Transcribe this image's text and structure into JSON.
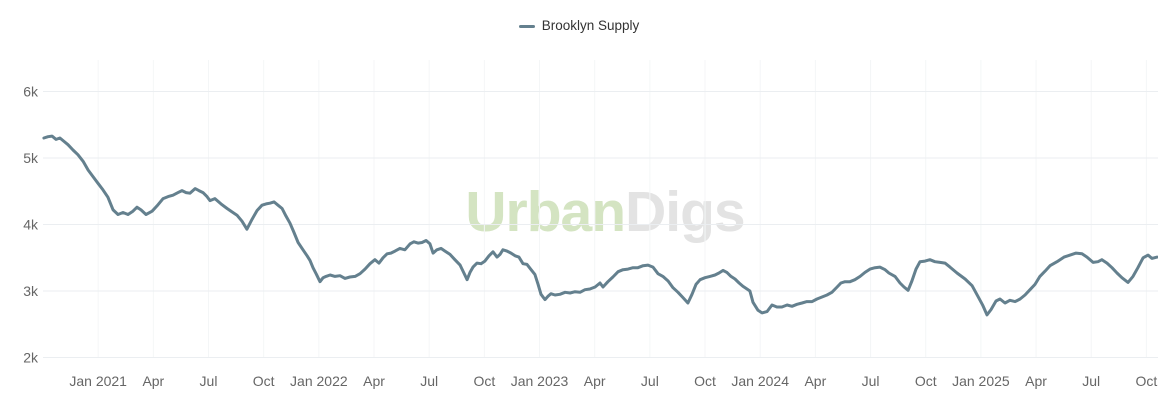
{
  "legend": {
    "series_label": "Brooklyn Supply"
  },
  "watermark": {
    "part1": "Urban",
    "part2": "Digs"
  },
  "colors": {
    "line": "#64808e",
    "watermark_green": "#d4e4c2",
    "watermark_gray": "#e3e3e3",
    "grid_horizontal": "#ebeef1",
    "grid_vertical": "#f4f6f7",
    "axis_label": "#666666",
    "legend_text": "#333333"
  },
  "chart_data": {
    "type": "line",
    "title": "",
    "legend_position": "top-center",
    "grid": true,
    "x_unit": "months since Oct 2020",
    "x_domain": [
      0,
      60.6
    ],
    "y_domain": [
      2000,
      6000
    ],
    "y_ticks": [
      {
        "v": 2000,
        "label": "2k"
      },
      {
        "v": 3000,
        "label": "3k"
      },
      {
        "v": 4000,
        "label": "4k"
      },
      {
        "v": 5000,
        "label": "5k"
      },
      {
        "v": 6000,
        "label": "6k"
      }
    ],
    "x_ticks": [
      {
        "t": 3,
        "label": "Jan 2021"
      },
      {
        "t": 6,
        "label": "Apr"
      },
      {
        "t": 9,
        "label": "Jul"
      },
      {
        "t": 12,
        "label": "Oct"
      },
      {
        "t": 15,
        "label": "Jan 2022"
      },
      {
        "t": 18,
        "label": "Apr"
      },
      {
        "t": 21,
        "label": "Jul"
      },
      {
        "t": 24,
        "label": "Oct"
      },
      {
        "t": 27,
        "label": "Jan 2023"
      },
      {
        "t": 30,
        "label": "Apr"
      },
      {
        "t": 33,
        "label": "Jul"
      },
      {
        "t": 36,
        "label": "Oct"
      },
      {
        "t": 39,
        "label": "Jan 2024"
      },
      {
        "t": 42,
        "label": "Apr"
      },
      {
        "t": 45,
        "label": "Jul"
      },
      {
        "t": 48,
        "label": "Oct"
      },
      {
        "t": 51,
        "label": "Jan 2025"
      },
      {
        "t": 54,
        "label": "Apr"
      },
      {
        "t": 57,
        "label": "Jul"
      },
      {
        "t": 60,
        "label": "Oct"
      }
    ],
    "series": [
      {
        "name": "Brooklyn Supply",
        "points": [
          [
            0.05,
            5300
          ],
          [
            0.27,
            5320
          ],
          [
            0.49,
            5330
          ],
          [
            0.71,
            5280
          ],
          [
            0.92,
            5300
          ],
          [
            1.14,
            5250
          ],
          [
            1.36,
            5200
          ],
          [
            1.63,
            5120
          ],
          [
            1.9,
            5050
          ],
          [
            2.18,
            4950
          ],
          [
            2.45,
            4820
          ],
          [
            2.72,
            4720
          ],
          [
            2.99,
            4620
          ],
          [
            3.26,
            4520
          ],
          [
            3.53,
            4410
          ],
          [
            3.81,
            4220
          ],
          [
            4.08,
            4150
          ],
          [
            4.35,
            4180
          ],
          [
            4.62,
            4150
          ],
          [
            4.89,
            4200
          ],
          [
            5.11,
            4260
          ],
          [
            5.33,
            4220
          ],
          [
            5.6,
            4150
          ],
          [
            5.93,
            4200
          ],
          [
            6.2,
            4280
          ],
          [
            6.53,
            4390
          ],
          [
            6.8,
            4420
          ],
          [
            7.07,
            4440
          ],
          [
            7.34,
            4480
          ],
          [
            7.56,
            4510
          ],
          [
            7.78,
            4480
          ],
          [
            7.99,
            4470
          ],
          [
            8.27,
            4540
          ],
          [
            8.48,
            4510
          ],
          [
            8.7,
            4480
          ],
          [
            8.92,
            4420
          ],
          [
            9.08,
            4360
          ],
          [
            9.35,
            4390
          ],
          [
            9.68,
            4310
          ],
          [
            10.01,
            4240
          ],
          [
            10.28,
            4190
          ],
          [
            10.55,
            4140
          ],
          [
            10.82,
            4050
          ],
          [
            11.09,
            3930
          ],
          [
            11.37,
            4080
          ],
          [
            11.64,
            4210
          ],
          [
            11.91,
            4290
          ],
          [
            12.13,
            4310
          ],
          [
            12.34,
            4320
          ],
          [
            12.56,
            4340
          ],
          [
            12.78,
            4290
          ],
          [
            13,
            4240
          ],
          [
            13.21,
            4130
          ],
          [
            13.43,
            4020
          ],
          [
            13.65,
            3880
          ],
          [
            13.87,
            3730
          ],
          [
            14.14,
            3620
          ],
          [
            14.36,
            3530
          ],
          [
            14.52,
            3460
          ],
          [
            14.68,
            3350
          ],
          [
            14.85,
            3260
          ],
          [
            15.06,
            3140
          ],
          [
            15.23,
            3200
          ],
          [
            15.39,
            3220
          ],
          [
            15.61,
            3240
          ],
          [
            15.88,
            3220
          ],
          [
            16.15,
            3230
          ],
          [
            16.42,
            3190
          ],
          [
            16.69,
            3210
          ],
          [
            16.97,
            3220
          ],
          [
            17.24,
            3260
          ],
          [
            17.51,
            3330
          ],
          [
            17.78,
            3410
          ],
          [
            18.05,
            3470
          ],
          [
            18.27,
            3420
          ],
          [
            18.49,
            3500
          ],
          [
            18.71,
            3560
          ],
          [
            18.92,
            3570
          ],
          [
            19.14,
            3600
          ],
          [
            19.41,
            3640
          ],
          [
            19.68,
            3620
          ],
          [
            19.96,
            3710
          ],
          [
            20.17,
            3740
          ],
          [
            20.39,
            3720
          ],
          [
            20.61,
            3730
          ],
          [
            20.83,
            3760
          ],
          [
            21.04,
            3710
          ],
          [
            21.21,
            3570
          ],
          [
            21.42,
            3620
          ],
          [
            21.64,
            3640
          ],
          [
            21.86,
            3600
          ],
          [
            22.13,
            3550
          ],
          [
            22.4,
            3470
          ],
          [
            22.68,
            3390
          ],
          [
            22.89,
            3270
          ],
          [
            23.06,
            3170
          ],
          [
            23.22,
            3280
          ],
          [
            23.38,
            3360
          ],
          [
            23.6,
            3420
          ],
          [
            23.82,
            3410
          ],
          [
            24.03,
            3450
          ],
          [
            24.25,
            3530
          ],
          [
            24.47,
            3590
          ],
          [
            24.69,
            3510
          ],
          [
            24.85,
            3550
          ],
          [
            25.01,
            3620
          ],
          [
            25.23,
            3600
          ],
          [
            25.45,
            3570
          ],
          [
            25.67,
            3530
          ],
          [
            25.88,
            3510
          ],
          [
            26.1,
            3410
          ],
          [
            26.32,
            3400
          ],
          [
            26.54,
            3320
          ],
          [
            26.75,
            3250
          ],
          [
            26.92,
            3100
          ],
          [
            27.08,
            2950
          ],
          [
            27.3,
            2870
          ],
          [
            27.46,
            2920
          ],
          [
            27.62,
            2960
          ],
          [
            27.84,
            2940
          ],
          [
            28.11,
            2950
          ],
          [
            28.39,
            2980
          ],
          [
            28.66,
            2970
          ],
          [
            28.93,
            2990
          ],
          [
            29.2,
            2980
          ],
          [
            29.47,
            3020
          ],
          [
            29.74,
            3030
          ],
          [
            30.02,
            3060
          ],
          [
            30.29,
            3120
          ],
          [
            30.45,
            3060
          ],
          [
            30.72,
            3140
          ],
          [
            30.99,
            3210
          ],
          [
            31.27,
            3290
          ],
          [
            31.54,
            3320
          ],
          [
            31.81,
            3330
          ],
          [
            32.08,
            3350
          ],
          [
            32.35,
            3350
          ],
          [
            32.63,
            3380
          ],
          [
            32.9,
            3390
          ],
          [
            33.17,
            3360
          ],
          [
            33.44,
            3260
          ],
          [
            33.71,
            3220
          ],
          [
            33.99,
            3150
          ],
          [
            34.26,
            3050
          ],
          [
            34.53,
            2980
          ],
          [
            34.8,
            2900
          ],
          [
            35.07,
            2820
          ],
          [
            35.29,
            2950
          ],
          [
            35.51,
            3100
          ],
          [
            35.73,
            3170
          ],
          [
            36,
            3200
          ],
          [
            36.27,
            3220
          ],
          [
            36.54,
            3240
          ],
          [
            36.76,
            3270
          ],
          [
            36.98,
            3310
          ],
          [
            37.19,
            3280
          ],
          [
            37.41,
            3220
          ],
          [
            37.63,
            3180
          ],
          [
            37.85,
            3120
          ],
          [
            38.06,
            3070
          ],
          [
            38.28,
            3030
          ],
          [
            38.44,
            3000
          ],
          [
            38.61,
            2830
          ],
          [
            38.88,
            2710
          ],
          [
            39.1,
            2670
          ],
          [
            39.37,
            2690
          ],
          [
            39.64,
            2790
          ],
          [
            39.91,
            2760
          ],
          [
            40.18,
            2760
          ],
          [
            40.46,
            2790
          ],
          [
            40.73,
            2770
          ],
          [
            41,
            2800
          ],
          [
            41.27,
            2820
          ],
          [
            41.54,
            2840
          ],
          [
            41.82,
            2840
          ],
          [
            42.09,
            2880
          ],
          [
            42.36,
            2910
          ],
          [
            42.63,
            2940
          ],
          [
            42.9,
            2980
          ],
          [
            43.18,
            3060
          ],
          [
            43.39,
            3120
          ],
          [
            43.61,
            3140
          ],
          [
            43.88,
            3140
          ],
          [
            44.15,
            3170
          ],
          [
            44.43,
            3220
          ],
          [
            44.7,
            3280
          ],
          [
            44.97,
            3330
          ],
          [
            45.24,
            3350
          ],
          [
            45.51,
            3360
          ],
          [
            45.79,
            3320
          ],
          [
            46,
            3270
          ],
          [
            46.33,
            3220
          ],
          [
            46.6,
            3120
          ],
          [
            46.82,
            3060
          ],
          [
            47.04,
            3010
          ],
          [
            47.25,
            3150
          ],
          [
            47.47,
            3330
          ],
          [
            47.69,
            3440
          ],
          [
            47.96,
            3450
          ],
          [
            48.23,
            3470
          ],
          [
            48.5,
            3440
          ],
          [
            48.78,
            3430
          ],
          [
            49.05,
            3420
          ],
          [
            49.32,
            3360
          ],
          [
            49.7,
            3270
          ],
          [
            50.14,
            3180
          ],
          [
            50.52,
            3080
          ],
          [
            50.84,
            2920
          ],
          [
            51.11,
            2780
          ],
          [
            51.33,
            2640
          ],
          [
            51.55,
            2720
          ],
          [
            51.82,
            2850
          ],
          [
            52.04,
            2880
          ],
          [
            52.31,
            2820
          ],
          [
            52.58,
            2860
          ],
          [
            52.86,
            2840
          ],
          [
            53.13,
            2880
          ],
          [
            53.4,
            2940
          ],
          [
            53.67,
            3020
          ],
          [
            53.94,
            3100
          ],
          [
            54.21,
            3220
          ],
          [
            54.49,
            3300
          ],
          [
            54.76,
            3380
          ],
          [
            55.14,
            3440
          ],
          [
            55.52,
            3510
          ],
          [
            55.85,
            3540
          ],
          [
            56.17,
            3570
          ],
          [
            56.5,
            3560
          ],
          [
            56.77,
            3510
          ],
          [
            57.1,
            3430
          ],
          [
            57.37,
            3440
          ],
          [
            57.58,
            3470
          ],
          [
            57.86,
            3420
          ],
          [
            58.13,
            3350
          ],
          [
            58.4,
            3270
          ],
          [
            58.67,
            3200
          ],
          [
            59,
            3130
          ],
          [
            59.27,
            3220
          ],
          [
            59.54,
            3350
          ],
          [
            59.82,
            3500
          ],
          [
            60.09,
            3540
          ],
          [
            60.3,
            3490
          ],
          [
            60.58,
            3510
          ]
        ]
      }
    ]
  }
}
